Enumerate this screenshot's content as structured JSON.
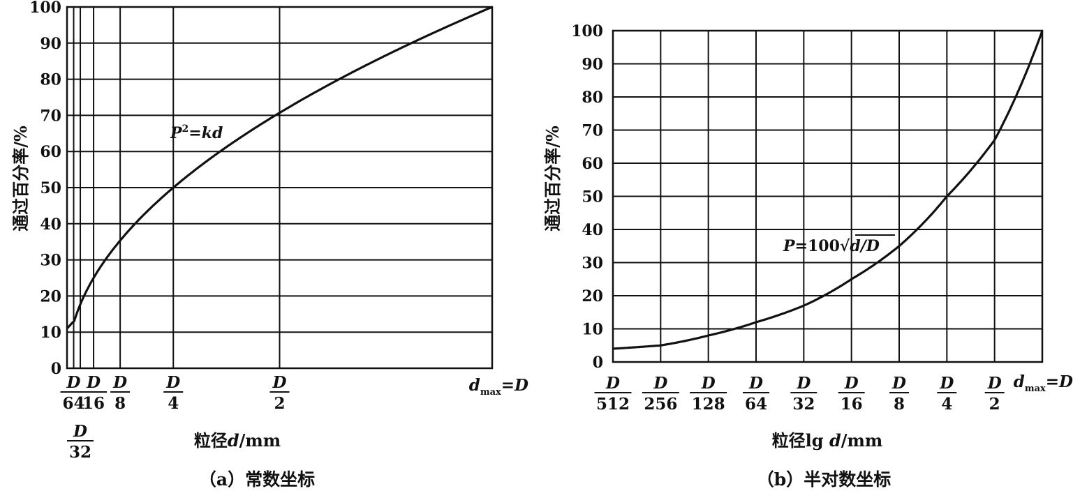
{
  "chart_data": [
    {
      "type": "line",
      "caption": "（a）常数坐标",
      "xlabel": "粒径d/mm",
      "ylabel": "通过百分率/%",
      "x_scale": "linear",
      "xlim": [
        0,
        1
      ],
      "ylim": [
        0,
        100
      ],
      "y_ticks": [
        0,
        10,
        20,
        30,
        40,
        50,
        60,
        70,
        80,
        90,
        100
      ],
      "x_ticks": [
        {
          "value": 0.015625,
          "num": "D",
          "den": "64"
        },
        {
          "value": 0.03125,
          "num": "D",
          "den": "32"
        },
        {
          "value": 0.0625,
          "num": "D",
          "den": "16"
        },
        {
          "value": 0.125,
          "num": "D",
          "den": "8"
        },
        {
          "value": 0.25,
          "num": "D",
          "den": "4"
        },
        {
          "value": 0.5,
          "num": "D",
          "den": "2"
        },
        {
          "value": 1,
          "label": "dmax=D"
        }
      ],
      "annotation": "P²=kd",
      "grid": true,
      "series": [
        {
          "x": [
            0,
            0.015625,
            0.03125,
            0.0625,
            0.125,
            0.25,
            0.5,
            1
          ],
          "y": [
            11,
            13,
            18,
            30,
            37,
            50,
            71,
            100
          ]
        }
      ]
    },
    {
      "type": "line",
      "caption": "（b）半对数坐标",
      "xlabel": "粒径lg d/mm",
      "ylabel": "通过百分率/%",
      "x_scale": "log2",
      "xlim": [
        0.001953125,
        1
      ],
      "ylim": [
        0,
        100
      ],
      "y_ticks": [
        0,
        10,
        20,
        30,
        40,
        50,
        60,
        70,
        80,
        90,
        100
      ],
      "x_ticks": [
        {
          "value": 0.001953125,
          "num": "D",
          "den": "512"
        },
        {
          "value": 0.00390625,
          "num": "D",
          "den": "256"
        },
        {
          "value": 0.0078125,
          "num": "D",
          "den": "128"
        },
        {
          "value": 0.015625,
          "num": "D",
          "den": "64"
        },
        {
          "value": 0.03125,
          "num": "D",
          "den": "32"
        },
        {
          "value": 0.0625,
          "num": "D",
          "den": "16"
        },
        {
          "value": 0.125,
          "num": "D",
          "den": "8"
        },
        {
          "value": 0.25,
          "num": "D",
          "den": "4"
        },
        {
          "value": 0.5,
          "num": "D",
          "den": "2"
        },
        {
          "value": 1,
          "label": "dmax=D"
        }
      ],
      "annotation": "P=100√d/D",
      "grid": true,
      "series": [
        {
          "x": [
            0.001953125,
            0.00390625,
            0.0078125,
            0.015625,
            0.03125,
            0.0625,
            0.125,
            0.25,
            0.5,
            1
          ],
          "y": [
            4,
            5,
            8,
            12,
            17,
            25,
            35,
            50,
            67,
            100
          ]
        }
      ]
    }
  ]
}
